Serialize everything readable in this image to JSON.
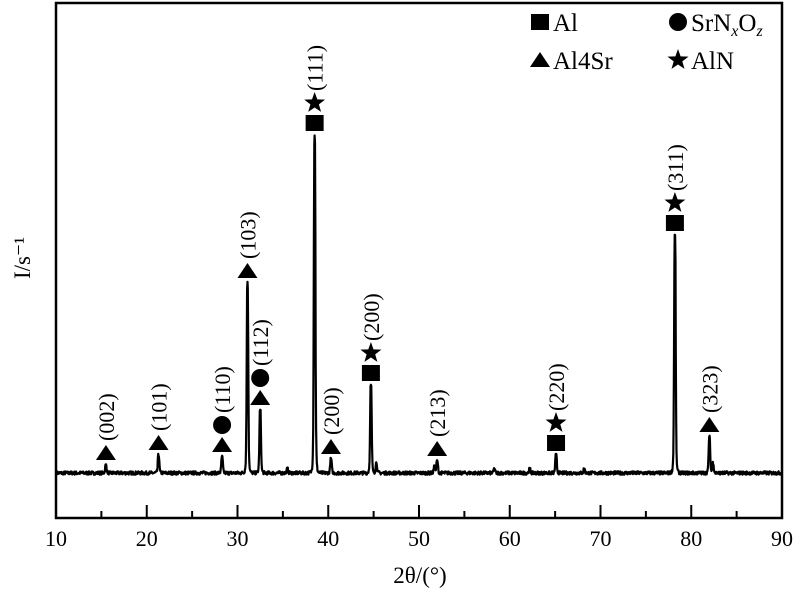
{
  "chart_data": {
    "type": "line",
    "title": "",
    "xlabel": "2θ/(°)",
    "xlabel_parts": {
      "var": "2θ",
      "unit": "/(°)"
    },
    "ylabel": "I/s⁻¹",
    "ylabel_parts": {
      "var": "I",
      "unit": "/s",
      "exp": "−1"
    },
    "xlim": [
      10,
      90
    ],
    "ylim": [
      -45,
      470
    ],
    "xticks": [
      10,
      20,
      30,
      40,
      50,
      60,
      70,
      80,
      90
    ],
    "xtick_labels": [
      "10",
      "20",
      "30",
      "40",
      "50",
      "60",
      "70",
      "80",
      "90"
    ],
    "yticks_shown": false,
    "grid": false,
    "legend_placement": "top-right",
    "legend": [
      {
        "symbol": "square",
        "label": "Al"
      },
      {
        "symbol": "circle",
        "label": "SrNxOz",
        "parts": [
          "SrN",
          "x",
          "O",
          "z"
        ]
      },
      {
        "symbol": "triangle",
        "label": "Al4Sr",
        "parts": [
          "Al",
          "4",
          "Sr"
        ]
      },
      {
        "symbol": "star",
        "label": "AlN"
      }
    ],
    "peaks": [
      {
        "two_theta": 15.5,
        "intensity": 8,
        "markers": [
          "triangle"
        ],
        "hkl": "(002)"
      },
      {
        "two_theta": 21.3,
        "intensity": 18,
        "markers": [
          "triangle"
        ],
        "hkl": "(101)"
      },
      {
        "two_theta": 28.3,
        "intensity": 16,
        "markers": [
          "triangle",
          "circle"
        ],
        "hkl": "(110)"
      },
      {
        "two_theta": 31.1,
        "intensity": 190,
        "markers": [
          "triangle"
        ],
        "hkl": "(103)"
      },
      {
        "two_theta": 32.5,
        "intensity": 63,
        "markers": [
          "triangle",
          "circle"
        ],
        "hkl": "(112)"
      },
      {
        "two_theta": 38.5,
        "intensity": 338,
        "markers": [
          "square",
          "star"
        ],
        "hkl": "(111)"
      },
      {
        "two_theta": 40.3,
        "intensity": 14,
        "markers": [
          "triangle"
        ],
        "hkl": "(200)"
      },
      {
        "two_theta": 44.7,
        "intensity": 88,
        "markers": [
          "square",
          "star"
        ],
        "hkl": "(200)"
      },
      {
        "two_theta": 52.0,
        "intensity": 12,
        "markers": [
          "triangle"
        ],
        "hkl": "(213)"
      },
      {
        "two_theta": 65.1,
        "intensity": 18,
        "markers": [
          "square",
          "star"
        ],
        "hkl": "(220)"
      },
      {
        "two_theta": 78.2,
        "intensity": 238,
        "markers": [
          "square",
          "star"
        ],
        "hkl": "(311)"
      },
      {
        "two_theta": 82.0,
        "intensity": 36,
        "markers": [
          "triangle"
        ],
        "hkl": "(323)"
      }
    ],
    "minor_peaks": [
      {
        "two_theta": 35.5,
        "intensity": 4
      },
      {
        "two_theta": 45.3,
        "intensity": 10
      },
      {
        "two_theta": 51.7,
        "intensity": 6
      },
      {
        "two_theta": 58.3,
        "intensity": 4
      },
      {
        "two_theta": 62.2,
        "intensity": 4
      },
      {
        "two_theta": 68.2,
        "intensity": 4
      },
      {
        "two_theta": 82.4,
        "intensity": 10
      }
    ],
    "series_color": "#000000"
  }
}
